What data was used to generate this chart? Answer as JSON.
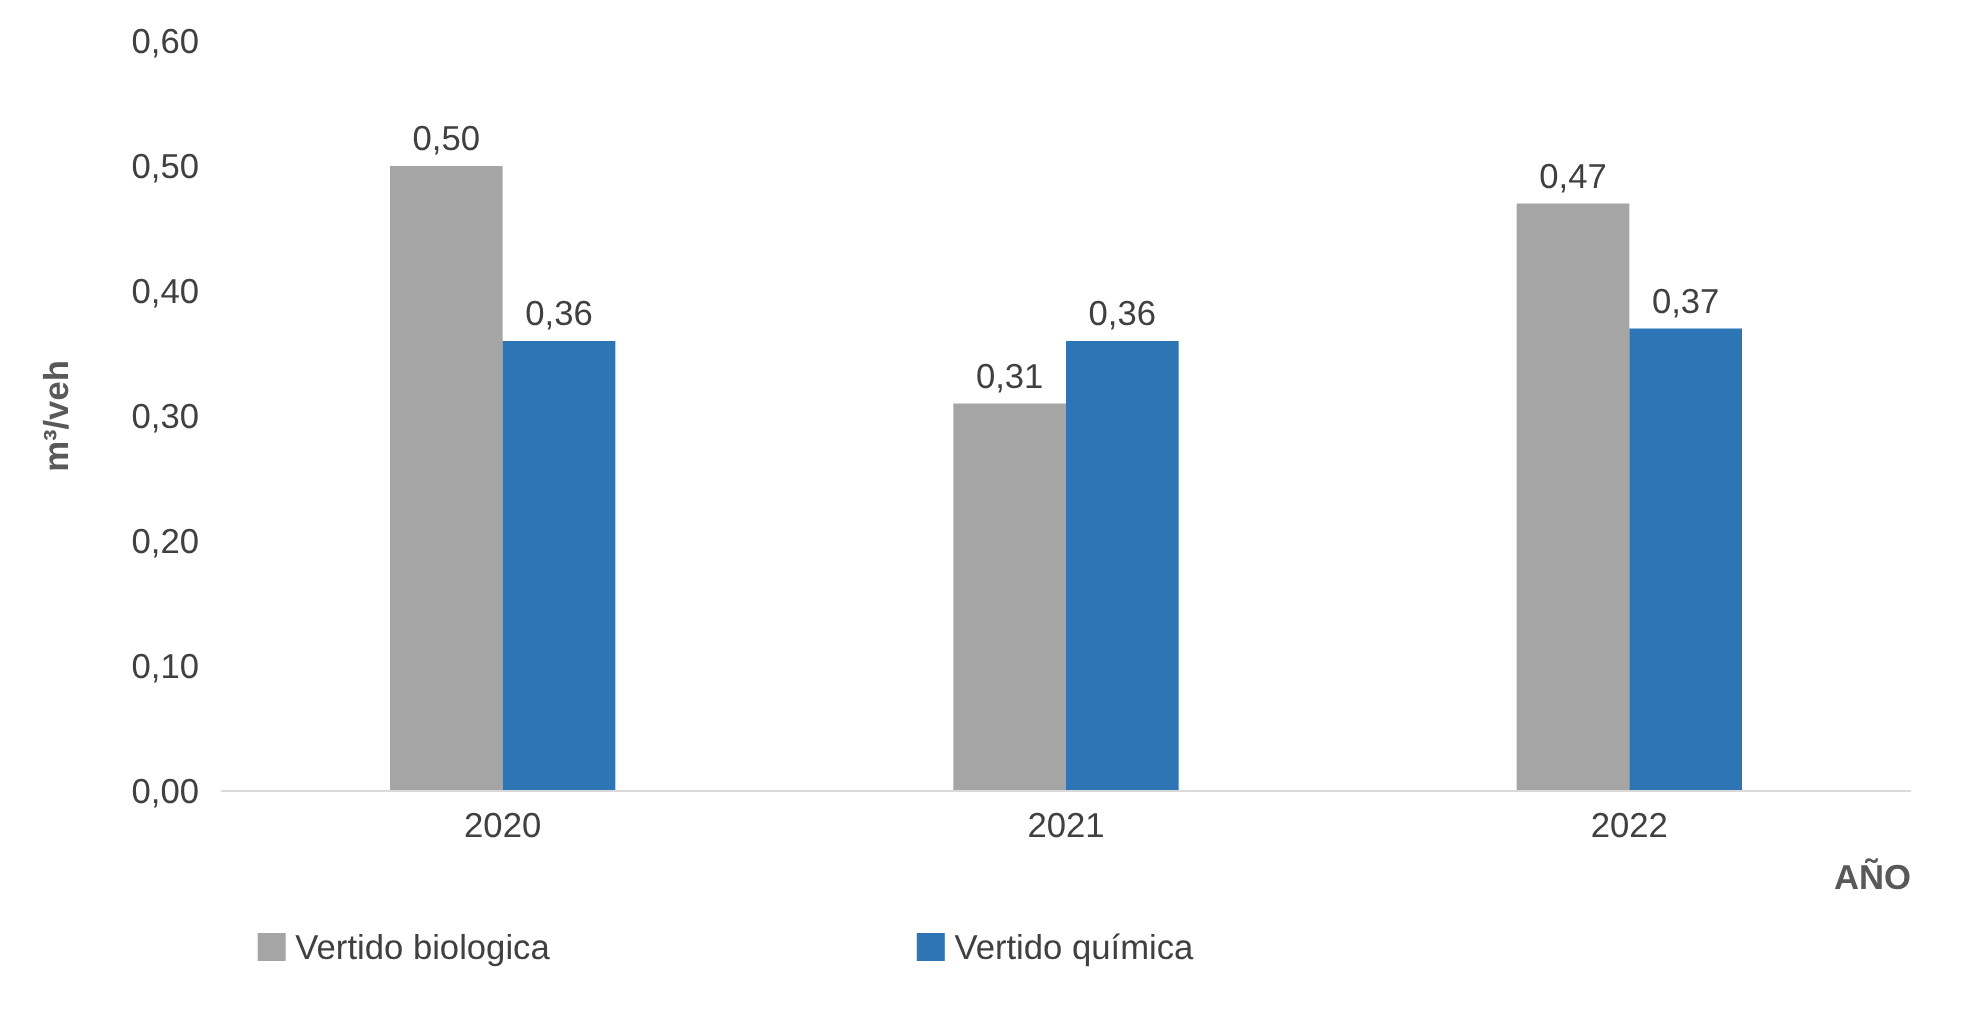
{
  "chart_data": {
    "type": "bar",
    "xlabel": "AÑO",
    "ylabel": "m³/veh",
    "categories": [
      "2020",
      "2021",
      "2022"
    ],
    "series": [
      {
        "name": "Vertido biologica",
        "color": "#a5a5a5",
        "values": [
          0.5,
          0.31,
          0.47
        ],
        "value_labels": [
          "0,50",
          "0,31",
          "0,47"
        ]
      },
      {
        "name": "Vertido química",
        "color": "#2e75b6",
        "values": [
          0.36,
          0.36,
          0.37
        ],
        "value_labels": [
          "0,36",
          "0,36",
          "0,37"
        ]
      }
    ],
    "ylim": [
      0,
      0.6
    ],
    "yticks": [
      {
        "value": 0,
        "label": "0,00"
      },
      {
        "value": 0.1,
        "label": "0,10"
      },
      {
        "value": 0.2,
        "label": "0,20"
      },
      {
        "value": 0.3,
        "label": "0,30"
      },
      {
        "value": 0.4,
        "label": "0,40"
      },
      {
        "value": 0.5,
        "label": "0,50"
      },
      {
        "value": 0.6,
        "label": "0,60"
      }
    ],
    "grid": false,
    "legend": "bottom left"
  }
}
